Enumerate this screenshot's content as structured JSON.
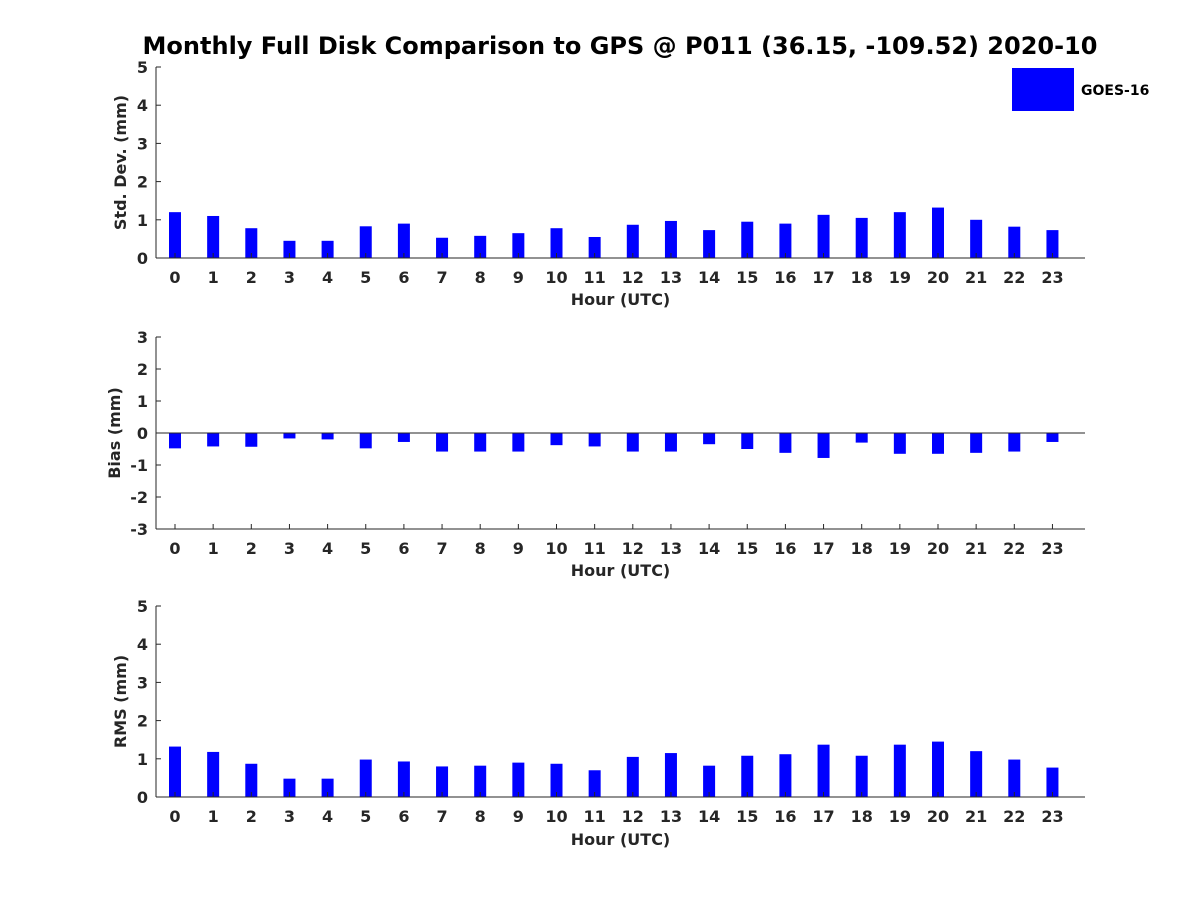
{
  "figure": {
    "title": "Monthly Full Disk Comparison to GPS @ P011 (36.15, -109.52) 2020-10",
    "legend": {
      "label": "GOES-16",
      "color": "#0000ff",
      "placement": "top-right"
    }
  },
  "chart_data": [
    {
      "type": "bar",
      "xlabel": "Hour (UTC)",
      "ylabel": "Std. Dev. (mm)",
      "categories": [
        "0",
        "1",
        "2",
        "3",
        "4",
        "5",
        "6",
        "7",
        "8",
        "9",
        "10",
        "11",
        "12",
        "13",
        "14",
        "15",
        "16",
        "17",
        "18",
        "19",
        "20",
        "21",
        "22",
        "23"
      ],
      "ylim": [
        0,
        5
      ],
      "yticks": [
        0,
        1,
        2,
        3,
        4,
        5
      ],
      "series": [
        {
          "name": "GOES-16",
          "color": "#0000ff",
          "values": [
            1.2,
            1.1,
            0.78,
            0.45,
            0.45,
            0.83,
            0.9,
            0.53,
            0.58,
            0.65,
            0.78,
            0.55,
            0.87,
            0.97,
            0.73,
            0.95,
            0.9,
            1.13,
            1.05,
            1.2,
            1.32,
            1.0,
            0.82,
            0.73
          ]
        }
      ]
    },
    {
      "type": "bar",
      "xlabel": "Hour (UTC)",
      "ylabel": "Bias (mm)",
      "categories": [
        "0",
        "1",
        "2",
        "3",
        "4",
        "5",
        "6",
        "7",
        "8",
        "9",
        "10",
        "11",
        "12",
        "13",
        "14",
        "15",
        "16",
        "17",
        "18",
        "19",
        "20",
        "21",
        "22",
        "23"
      ],
      "ylim": [
        -3,
        3
      ],
      "yticks": [
        -3,
        -2,
        -1,
        0,
        1,
        2,
        3
      ],
      "series": [
        {
          "name": "GOES-16",
          "color": "#0000ff",
          "values": [
            -0.48,
            -0.42,
            -0.43,
            -0.17,
            -0.2,
            -0.48,
            -0.28,
            -0.58,
            -0.58,
            -0.58,
            -0.38,
            -0.42,
            -0.58,
            -0.58,
            -0.35,
            -0.5,
            -0.62,
            -0.78,
            -0.3,
            -0.65,
            -0.65,
            -0.62,
            -0.58,
            -0.28
          ]
        }
      ]
    },
    {
      "type": "bar",
      "xlabel": "Hour (UTC)",
      "ylabel": "RMS (mm)",
      "categories": [
        "0",
        "1",
        "2",
        "3",
        "4",
        "5",
        "6",
        "7",
        "8",
        "9",
        "10",
        "11",
        "12",
        "13",
        "14",
        "15",
        "16",
        "17",
        "18",
        "19",
        "20",
        "21",
        "22",
        "23"
      ],
      "ylim": [
        0,
        5
      ],
      "yticks": [
        0,
        1,
        2,
        3,
        4,
        5
      ],
      "series": [
        {
          "name": "GOES-16",
          "color": "#0000ff",
          "values": [
            1.32,
            1.18,
            0.87,
            0.48,
            0.48,
            0.98,
            0.93,
            0.8,
            0.82,
            0.9,
            0.87,
            0.7,
            1.05,
            1.15,
            0.82,
            1.08,
            1.12,
            1.37,
            1.08,
            1.37,
            1.45,
            1.2,
            0.98,
            0.77
          ]
        }
      ]
    }
  ]
}
